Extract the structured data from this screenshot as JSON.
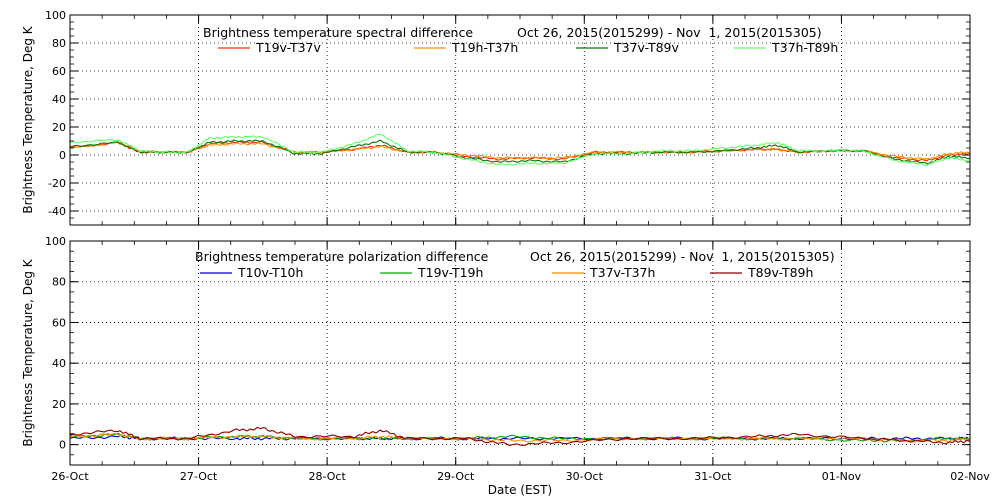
{
  "chart_data": [
    {
      "type": "line",
      "title": "Brightness temperature spectral difference",
      "subtitle": "Oct 26, 2015(2015299) - Nov  1, 2015(2015305)",
      "ylabel": "Brightness Temperature, Deg K",
      "xlabel": "",
      "ylim": [
        -50,
        100
      ],
      "yticks": [
        -40,
        -20,
        0,
        20,
        40,
        60,
        80,
        100
      ],
      "xlim": [
        "2015-10-26",
        "2015-11-02"
      ],
      "grid": true,
      "legend_position": "top",
      "series": [
        {
          "name": "T19v-T37v",
          "color": "#ff2a00",
          "x": [
            "2015-10-26T00:00",
            "2015-10-26T09:00",
            "2015-10-26T13:00",
            "2015-10-26T17:00",
            "2015-10-26T22:00",
            "2015-10-27T02:00",
            "2015-10-27T07:00",
            "2015-10-27T12:00",
            "2015-10-27T18:00",
            "2015-10-27T23:00",
            "2015-10-28T05:00",
            "2015-10-28T10:00",
            "2015-10-28T15:00",
            "2015-10-28T20:00",
            "2015-10-29T02:00",
            "2015-10-29T08:00",
            "2015-10-29T14:00",
            "2015-10-29T20:00",
            "2015-10-30T02:00",
            "2015-10-30T08:00",
            "2015-10-30T14:00",
            "2015-10-30T20:00",
            "2015-10-31T02:00",
            "2015-10-31T08:00",
            "2015-10-31T12:00",
            "2015-10-31T16:00",
            "2015-10-31T22:00",
            "2015-11-01T04:00",
            "2015-11-01T10:00",
            "2015-11-01T16:00",
            "2015-11-01T20:00",
            "2015-11-02T00:00"
          ],
          "values": [
            5,
            9,
            2,
            2,
            2,
            8,
            9,
            9,
            2,
            2,
            4,
            7,
            2,
            2,
            -1,
            -3,
            -2,
            -3,
            2,
            2,
            2,
            2,
            3,
            4,
            4,
            2,
            3,
            3,
            -2,
            -4,
            0,
            1
          ]
        },
        {
          "name": "T19h-T37h",
          "color": "#ff8c00",
          "x": [
            "2015-10-26T00:00",
            "2015-10-26T09:00",
            "2015-10-26T13:00",
            "2015-10-26T17:00",
            "2015-10-26T22:00",
            "2015-10-27T02:00",
            "2015-10-27T07:00",
            "2015-10-27T12:00",
            "2015-10-27T18:00",
            "2015-10-27T23:00",
            "2015-10-28T05:00",
            "2015-10-28T10:00",
            "2015-10-28T15:00",
            "2015-10-28T20:00",
            "2015-10-29T02:00",
            "2015-10-29T08:00",
            "2015-10-29T14:00",
            "2015-10-29T20:00",
            "2015-10-30T02:00",
            "2015-10-30T08:00",
            "2015-10-30T14:00",
            "2015-10-30T20:00",
            "2015-10-31T02:00",
            "2015-10-31T08:00",
            "2015-10-31T12:00",
            "2015-10-31T16:00",
            "2015-10-31T22:00",
            "2015-11-01T04:00",
            "2015-11-01T10:00",
            "2015-11-01T16:00",
            "2015-11-01T20:00",
            "2015-11-02T00:00"
          ],
          "values": [
            5,
            9,
            3,
            2,
            2,
            7,
            8,
            8,
            2,
            2,
            4,
            6,
            2,
            2,
            0,
            -2,
            -2,
            -2,
            2,
            2,
            2,
            2,
            3,
            4,
            4,
            2,
            3,
            3,
            -1,
            -3,
            1,
            2
          ]
        },
        {
          "name": "T37v-T89v",
          "color": "#007a00",
          "x": [
            "2015-10-26T00:00",
            "2015-10-26T09:00",
            "2015-10-26T13:00",
            "2015-10-26T17:00",
            "2015-10-26T22:00",
            "2015-10-27T02:00",
            "2015-10-27T07:00",
            "2015-10-27T12:00",
            "2015-10-27T18:00",
            "2015-10-27T23:00",
            "2015-10-28T05:00",
            "2015-10-28T10:00",
            "2015-10-28T15:00",
            "2015-10-28T20:00",
            "2015-10-29T02:00",
            "2015-10-29T08:00",
            "2015-10-29T14:00",
            "2015-10-29T20:00",
            "2015-10-30T02:00",
            "2015-10-30T08:00",
            "2015-10-30T14:00",
            "2015-10-30T20:00",
            "2015-10-31T02:00",
            "2015-10-31T08:00",
            "2015-10-31T12:00",
            "2015-10-31T16:00",
            "2015-10-31T22:00",
            "2015-11-01T04:00",
            "2015-11-01T10:00",
            "2015-11-01T16:00",
            "2015-11-01T20:00",
            "2015-11-02T00:00"
          ],
          "values": [
            6,
            9,
            2,
            2,
            2,
            9,
            10,
            10,
            1,
            1,
            6,
            10,
            2,
            2,
            -2,
            -5,
            -4,
            -5,
            1,
            1,
            2,
            2,
            3,
            5,
            7,
            2,
            3,
            3,
            -3,
            -6,
            -1,
            -2
          ]
        },
        {
          "name": "T37h-T89h",
          "color": "#66ff66",
          "x": [
            "2015-10-26T00:00",
            "2015-10-26T09:00",
            "2015-10-26T13:00",
            "2015-10-26T17:00",
            "2015-10-26T22:00",
            "2015-10-27T02:00",
            "2015-10-27T07:00",
            "2015-10-27T12:00",
            "2015-10-27T18:00",
            "2015-10-27T23:00",
            "2015-10-28T05:00",
            "2015-10-28T10:00",
            "2015-10-28T15:00",
            "2015-10-28T20:00",
            "2015-10-29T02:00",
            "2015-10-29T08:00",
            "2015-10-29T14:00",
            "2015-10-29T20:00",
            "2015-10-30T02:00",
            "2015-10-30T08:00",
            "2015-10-30T14:00",
            "2015-10-30T20:00",
            "2015-10-31T02:00",
            "2015-10-31T08:00",
            "2015-10-31T12:00",
            "2015-10-31T16:00",
            "2015-10-31T22:00",
            "2015-11-01T04:00",
            "2015-11-01T10:00",
            "2015-11-01T16:00",
            "2015-11-01T20:00",
            "2015-11-02T00:00"
          ],
          "values": [
            9,
            11,
            3,
            2,
            2,
            12,
            13,
            13,
            2,
            2,
            8,
            15,
            3,
            2,
            -3,
            -7,
            -6,
            -6,
            1,
            1,
            3,
            3,
            5,
            7,
            9,
            3,
            3,
            3,
            -4,
            -7,
            -2,
            -4
          ]
        }
      ]
    },
    {
      "type": "line",
      "title": "Brightness temperature polarization difference",
      "subtitle": "Oct 26, 2015(2015299) - Nov  1, 2015(2015305)",
      "ylabel": "Brightness Temperature, Deg K",
      "xlabel": "Date (EST)",
      "ylim": [
        -10,
        100
      ],
      "yticks": [
        0,
        20,
        40,
        60,
        80,
        100
      ],
      "xlim": [
        "2015-10-26",
        "2015-11-02"
      ],
      "xticks": [
        "26-Oct",
        "27-Oct",
        "28-Oct",
        "29-Oct",
        "30-Oct",
        "31-Oct",
        "01-Nov",
        "02-Nov"
      ],
      "grid": true,
      "legend_position": "top",
      "series": [
        {
          "name": "T10v-T10h",
          "color": "#0000cc",
          "x": [
            "2015-10-26T00:00",
            "2015-10-26T09:00",
            "2015-10-26T13:00",
            "2015-10-26T22:00",
            "2015-10-27T07:00",
            "2015-10-27T12:00",
            "2015-10-27T18:00",
            "2015-10-28T05:00",
            "2015-10-28T10:00",
            "2015-10-28T15:00",
            "2015-10-29T02:00",
            "2015-10-29T10:00",
            "2015-10-29T20:00",
            "2015-10-30T08:00",
            "2015-10-30T20:00",
            "2015-10-31T08:00",
            "2015-10-31T16:00",
            "2015-11-01T04:00",
            "2015-11-01T12:00",
            "2015-11-01T20:00",
            "2015-11-02T00:00"
          ],
          "values": [
            3,
            4,
            3,
            3,
            3,
            3,
            3,
            3,
            3,
            3,
            3,
            3,
            3,
            3,
            3,
            3,
            3,
            3,
            3,
            3,
            3
          ]
        },
        {
          "name": "T19v-T19h",
          "color": "#00aa00",
          "x": [
            "2015-10-26T00:00",
            "2015-10-26T09:00",
            "2015-10-26T13:00",
            "2015-10-26T22:00",
            "2015-10-27T07:00",
            "2015-10-27T12:00",
            "2015-10-27T18:00",
            "2015-10-28T05:00",
            "2015-10-28T10:00",
            "2015-10-28T15:00",
            "2015-10-29T02:00",
            "2015-10-29T10:00",
            "2015-10-29T20:00",
            "2015-10-30T08:00",
            "2015-10-30T20:00",
            "2015-10-31T08:00",
            "2015-10-31T16:00",
            "2015-11-01T04:00",
            "2015-11-01T12:00",
            "2015-11-01T20:00",
            "2015-11-02T00:00"
          ],
          "values": [
            4,
            5,
            3,
            3,
            4,
            4,
            3,
            3,
            3,
            3,
            3,
            4,
            3,
            3,
            3,
            3,
            3,
            2,
            2,
            3,
            3
          ]
        },
        {
          "name": "T37v-T37h",
          "color": "#ff8c00",
          "x": [
            "2015-10-26T00:00",
            "2015-10-26T09:00",
            "2015-10-26T13:00",
            "2015-10-26T22:00",
            "2015-10-27T07:00",
            "2015-10-27T12:00",
            "2015-10-27T18:00",
            "2015-10-28T05:00",
            "2015-10-28T10:00",
            "2015-10-28T15:00",
            "2015-10-29T02:00",
            "2015-10-29T10:00",
            "2015-10-29T20:00",
            "2015-10-30T08:00",
            "2015-10-30T20:00",
            "2015-10-31T08:00",
            "2015-10-31T16:00",
            "2015-11-01T04:00",
            "2015-11-01T12:00",
            "2015-11-01T20:00",
            "2015-11-02T00:00"
          ],
          "values": [
            4,
            5,
            3,
            3,
            4,
            4,
            3,
            3,
            4,
            3,
            3,
            2,
            2,
            3,
            3,
            3,
            3,
            3,
            2,
            2,
            3
          ]
        },
        {
          "name": "T89v-T89h",
          "color": "#8b0000",
          "x": [
            "2015-10-26T00:00",
            "2015-10-26T09:00",
            "2015-10-26T13:00",
            "2015-10-26T22:00",
            "2015-10-27T07:00",
            "2015-10-27T12:00",
            "2015-10-27T18:00",
            "2015-10-28T05:00",
            "2015-10-28T10:00",
            "2015-10-28T15:00",
            "2015-10-29T02:00",
            "2015-10-29T10:00",
            "2015-10-29T20:00",
            "2015-10-30T08:00",
            "2015-10-30T20:00",
            "2015-10-31T08:00",
            "2015-10-31T16:00",
            "2015-11-01T04:00",
            "2015-11-01T12:00",
            "2015-11-01T20:00",
            "2015-11-02T00:00"
          ],
          "values": [
            5,
            7,
            3,
            3,
            7,
            8,
            4,
            4,
            7,
            3,
            3,
            0,
            1,
            3,
            3,
            4,
            5,
            3,
            2,
            1,
            2
          ]
        }
      ]
    }
  ]
}
